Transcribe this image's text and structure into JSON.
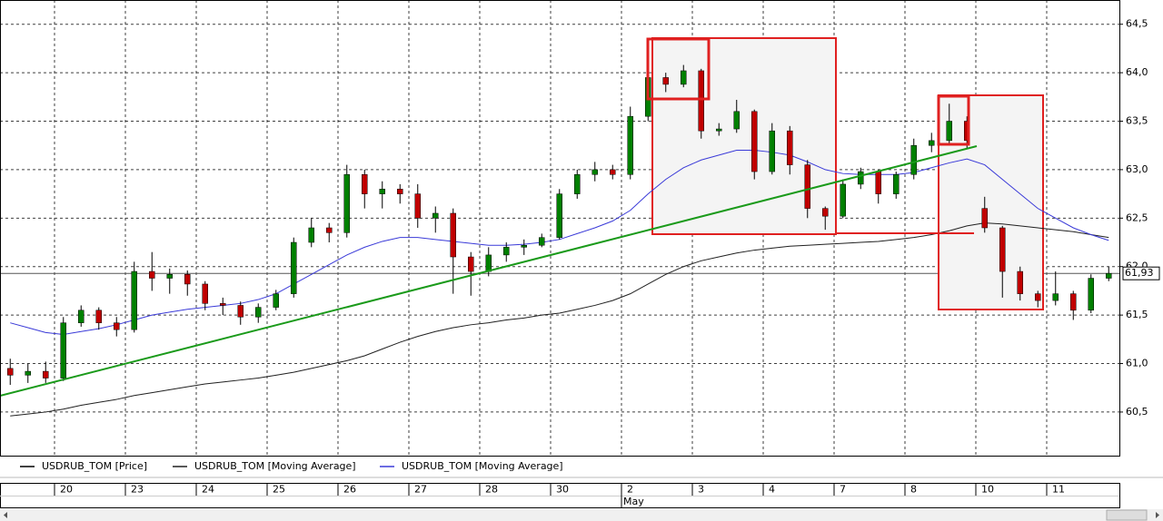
{
  "chart_data": {
    "type": "candlestick",
    "candles": {
      "name": "USDRUB_TOM [Price]",
      "color": "#000000",
      "up_color": "#008000",
      "down_color": "#c00000",
      "open": [
        60.95,
        60.88,
        60.92,
        60.85,
        61.42,
        61.55,
        61.42,
        61.35,
        61.95,
        61.88,
        61.92,
        61.82,
        61.62,
        61.6,
        61.48,
        61.58,
        61.72,
        62.25,
        62.4,
        62.35,
        62.95,
        62.75,
        62.8,
        62.75,
        62.5,
        62.55,
        62.1,
        61.95,
        62.12,
        62.2,
        62.22,
        62.3,
        62.75,
        62.95,
        63.0,
        62.95,
        63.55,
        63.95,
        63.88,
        64.02,
        63.4,
        63.42,
        63.6,
        62.98,
        63.4,
        63.05,
        62.6,
        62.52,
        62.85,
        62.98,
        62.75,
        62.95,
        63.25,
        63.3,
        63.5,
        62.6,
        62.4,
        61.95,
        61.72,
        61.65,
        61.72,
        61.55,
        61.88
      ],
      "high": [
        61.05,
        61.0,
        61.02,
        61.48,
        61.6,
        61.58,
        61.48,
        62.05,
        62.15,
        61.98,
        61.96,
        61.85,
        61.68,
        61.64,
        61.62,
        61.76,
        62.3,
        62.5,
        62.45,
        63.05,
        63.0,
        62.88,
        62.85,
        62.85,
        62.62,
        62.6,
        62.15,
        62.2,
        62.25,
        62.28,
        62.34,
        62.8,
        63.0,
        63.08,
        63.05,
        63.65,
        64.1,
        64.0,
        64.08,
        64.04,
        63.48,
        63.72,
        63.62,
        63.48,
        63.45,
        63.1,
        62.62,
        62.9,
        63.02,
        63.0,
        62.98,
        63.32,
        63.38,
        63.68,
        63.55,
        62.72,
        62.42,
        62.0,
        61.75,
        61.95,
        61.75,
        61.92,
        62.0
      ],
      "low": [
        60.78,
        60.8,
        60.8,
        60.82,
        61.38,
        61.35,
        61.28,
        61.32,
        61.75,
        61.72,
        61.7,
        61.55,
        61.5,
        61.4,
        61.42,
        61.55,
        61.68,
        62.2,
        62.25,
        62.3,
        62.6,
        62.6,
        62.65,
        62.4,
        62.35,
        61.72,
        61.7,
        61.9,
        62.05,
        62.12,
        62.2,
        62.28,
        62.7,
        62.88,
        62.9,
        62.9,
        63.5,
        63.8,
        63.85,
        63.32,
        63.35,
        63.38,
        62.9,
        62.95,
        62.95,
        62.5,
        62.38,
        62.5,
        62.8,
        62.65,
        62.7,
        62.9,
        63.18,
        63.25,
        63.22,
        62.35,
        61.68,
        61.65,
        61.58,
        61.6,
        61.45,
        61.52,
        61.85
      ],
      "close": [
        60.88,
        60.92,
        60.85,
        61.42,
        61.55,
        61.42,
        61.35,
        61.95,
        61.88,
        61.92,
        61.82,
        61.62,
        61.6,
        61.48,
        61.58,
        61.72,
        62.25,
        62.4,
        62.35,
        62.95,
        62.75,
        62.8,
        62.75,
        62.5,
        62.55,
        62.1,
        61.95,
        62.12,
        62.2,
        62.22,
        62.3,
        62.75,
        62.95,
        63.0,
        62.95,
        63.55,
        63.95,
        63.88,
        64.02,
        63.4,
        63.42,
        63.6,
        62.98,
        63.4,
        63.05,
        62.6,
        62.52,
        62.85,
        62.98,
        62.75,
        62.95,
        63.25,
        63.3,
        63.5,
        63.3,
        62.4,
        61.95,
        61.72,
        61.65,
        61.72,
        61.55,
        61.88,
        61.93
      ]
    },
    "series": [
      {
        "name": "USDRUB_TOM [Moving Average]",
        "color": "#202020",
        "values": [
          60.46,
          60.48,
          60.5,
          60.53,
          60.57,
          60.6,
          60.63,
          60.67,
          60.7,
          60.73,
          60.76,
          60.79,
          60.81,
          60.83,
          60.85,
          60.88,
          60.91,
          60.95,
          60.99,
          61.03,
          61.08,
          61.15,
          61.22,
          61.28,
          61.33,
          61.37,
          61.4,
          61.42,
          61.45,
          61.47,
          61.5,
          61.52,
          61.56,
          61.6,
          61.65,
          61.72,
          61.82,
          61.92,
          62.0,
          62.06,
          62.1,
          62.14,
          62.17,
          62.19,
          62.21,
          62.22,
          62.23,
          62.24,
          62.25,
          62.26,
          62.28,
          62.3,
          62.33,
          62.37,
          62.42,
          62.45,
          62.44,
          62.42,
          62.4,
          62.38,
          62.36,
          62.33,
          62.3
        ]
      },
      {
        "name": "USDRUB_TOM [Moving Average]",
        "color": "#3a3ad8",
        "values": [
          61.42,
          61.37,
          61.32,
          61.3,
          61.33,
          61.36,
          61.4,
          61.45,
          61.5,
          61.53,
          61.56,
          61.58,
          61.6,
          61.62,
          61.66,
          61.72,
          61.82,
          61.92,
          62.02,
          62.12,
          62.2,
          62.26,
          62.3,
          62.3,
          62.28,
          62.26,
          62.24,
          62.22,
          62.22,
          62.23,
          62.25,
          62.28,
          62.34,
          62.4,
          62.47,
          62.58,
          62.75,
          62.9,
          63.02,
          63.1,
          63.15,
          63.2,
          63.2,
          63.18,
          63.15,
          63.08,
          63.0,
          62.96,
          62.95,
          62.95,
          62.95,
          62.97,
          63.02,
          63.07,
          63.11,
          63.05,
          62.9,
          62.75,
          62.6,
          62.5,
          62.4,
          62.33,
          62.27
        ]
      }
    ],
    "x_labels": [
      "20",
      "23",
      "24",
      "25",
      "26",
      "27",
      "28",
      "30",
      "2",
      "3",
      "4",
      "7",
      "8",
      "10",
      "11"
    ],
    "month_label": "May",
    "ylim": [
      60.05,
      64.75
    ],
    "yticks": [
      {
        "value": 60.5,
        "label": "60,5"
      },
      {
        "value": 61,
        "label": "61,0"
      },
      {
        "value": 61.5,
        "label": "61,5"
      },
      {
        "value": 62,
        "label": "62,0"
      },
      {
        "value": 62.5,
        "label": "62,5"
      },
      {
        "value": 63,
        "label": "63,0"
      },
      {
        "value": 63.5,
        "label": "63,5"
      },
      {
        "value": 64,
        "label": "64,0"
      },
      {
        "value": 64.5,
        "label": "64,5"
      }
    ],
    "last_price": {
      "value": 61.93,
      "label": "61,93"
    },
    "grid": true
  }
}
